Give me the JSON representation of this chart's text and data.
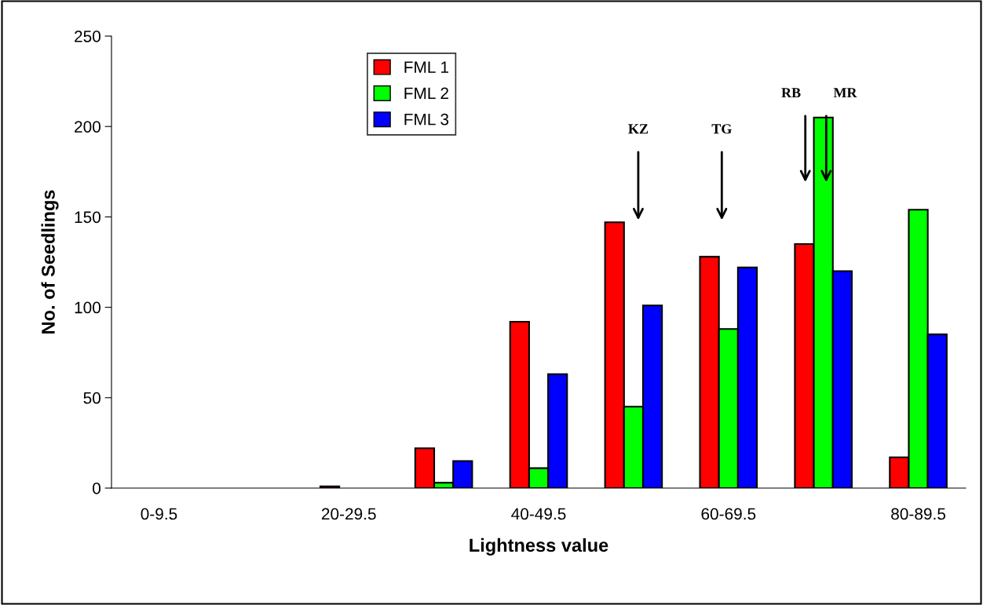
{
  "chart_data": {
    "type": "bar",
    "xlabel": "Lightness value",
    "ylabel": "No. of Seedlings",
    "categories": [
      "0-9.5",
      null,
      "20-29.5",
      null,
      "40-49.5",
      null,
      "60-69.5",
      null,
      "80-89.5"
    ],
    "series": [
      {
        "name": "FML 1",
        "color": "#ff0000",
        "values": [
          0,
          0,
          1,
          22,
          92,
          147,
          128,
          135,
          17
        ]
      },
      {
        "name": "FML 2",
        "color": "#00ff00",
        "values": [
          0,
          0,
          0,
          3,
          11,
          45,
          88,
          205,
          154
        ]
      },
      {
        "name": "FML 3",
        "color": "#0000ff",
        "values": [
          0,
          0,
          0,
          15,
          63,
          101,
          122,
          120,
          85
        ]
      }
    ],
    "ylim": [
      0,
      250
    ],
    "yticks": [
      0,
      50,
      100,
      150,
      200,
      250
    ],
    "annotations": [
      "KZ",
      "TG",
      "RB",
      "MR"
    ],
    "grid": false,
    "legend": "top left"
  }
}
